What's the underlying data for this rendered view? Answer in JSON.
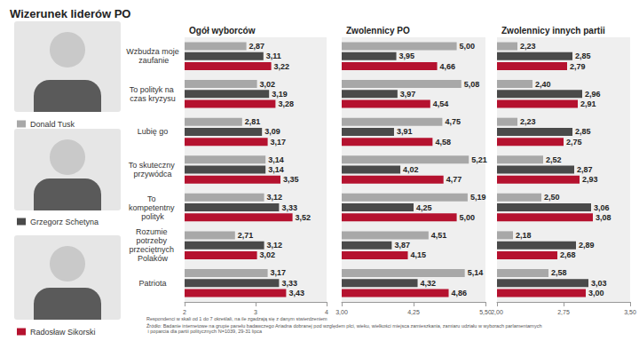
{
  "title": "Wizerunek liderów PO",
  "notes": [
    "Respondenci w skali od 1 do 7 określali, na ile zgadzają się z danym stwierdzeniem",
    "Źródło: Badanie internetowe na grupie panelu badawczego Ariadna dobranej pod względem płci, wieku, wielkości miejsca zamieszkania, zamiaru udziału w wyborach parlamentarnych i poparcia dla partii politycznych N=1039, 29-31 lipca"
  ],
  "chart_data": [
    {
      "type": "bar",
      "title": "Ogół wyborców",
      "orientation": "horizontal",
      "data_labels": true,
      "grid": false,
      "categories": [
        "Wzbudza moje zaufanie",
        "To polityk na czas kryzysu",
        "Lubię go",
        "To skuteczny przywódca",
        "To kompetentny polityk",
        "Rozumie potrzeby przeciętnych Polaków",
        "Patriota"
      ],
      "xlim": [
        2,
        4
      ],
      "xticks": [
        2,
        3,
        4
      ],
      "series": [
        {
          "name": "Donald Tusk",
          "color": "#a8a8a8",
          "values": [
            2.87,
            3.02,
            2.81,
            3.14,
            3.12,
            2.71,
            3.17
          ],
          "value_labels": [
            "2,87",
            "3,02",
            "2,81",
            "3,14",
            "3,12",
            "2,71",
            "3,17"
          ]
        },
        {
          "name": "Grzegorz Schetyna",
          "color": "#4a4a4a",
          "values": [
            3.11,
            3.19,
            3.09,
            3.14,
            3.33,
            3.12,
            3.33
          ],
          "value_labels": [
            "3,11",
            "3,19",
            "3,09",
            "3,14",
            "3,33",
            "3,12",
            "3,33"
          ]
        },
        {
          "name": "Radosław Sikorski",
          "color": "#b5122f",
          "values": [
            3.22,
            3.28,
            3.17,
            3.35,
            3.52,
            3.02,
            3.43
          ],
          "value_labels": [
            "3,22",
            "3,28",
            "3,17",
            "3,35",
            "3,52",
            "3,02",
            "3,43"
          ]
        }
      ]
    },
    {
      "type": "bar",
      "title": "Zwolennicy PO",
      "orientation": "horizontal",
      "data_labels": true,
      "grid": false,
      "categories": [
        "Wzbudza moje zaufanie",
        "To polityk na czas kryzysu",
        "Lubię go",
        "To skuteczny przywódca",
        "To kompetentny polityk",
        "Rozumie potrzeby przeciętnych Polaków",
        "Patriota"
      ],
      "tick_labels": "x",
      "xlim": [
        3.0,
        5.5
      ],
      "xticks": [
        {
          "value": 3.0,
          "label": "3,00"
        },
        {
          "value": 4.25,
          "label": "4,25"
        },
        {
          "value": 5.5,
          "label": "5,50"
        }
      ],
      "series": [
        {
          "name": "Donald Tusk",
          "color": "#a8a8a8",
          "values": [
            5.0,
            5.08,
            4.75,
            5.21,
            5.19,
            4.51,
            5.14
          ],
          "value_labels": [
            "5,00",
            "5,08",
            "4,75",
            "5,21",
            "5,19",
            "4,51",
            "5,14"
          ]
        },
        {
          "name": "Grzegorz Schetyna",
          "color": "#4a4a4a",
          "values": [
            3.95,
            3.97,
            3.91,
            4.02,
            4.25,
            3.87,
            4.32
          ],
          "value_labels": [
            "3,95",
            "3,97",
            "3,91",
            "4,02",
            "4,25",
            "3,87",
            "4,32"
          ]
        },
        {
          "name": "Radosław Sikorski",
          "color": "#b5122f",
          "values": [
            4.66,
            4.54,
            4.58,
            4.77,
            5.0,
            4.15,
            4.86
          ],
          "value_labels": [
            "4,66",
            "4,54",
            "4,58",
            "4,77",
            "5,00",
            "4,15",
            "4,86"
          ]
        }
      ]
    },
    {
      "type": "bar",
      "title": "Zwolennicy innych partii",
      "orientation": "horizontal",
      "data_labels": true,
      "grid": false,
      "categories": [
        "Wzbudza moje zaufanie",
        "To polityk na czas kryzysu",
        "Lubię go",
        "To skuteczny przywódca",
        "To kompetentny polityk",
        "Rozumie potrzeby przeciętnych Polaków",
        "Patriota"
      ],
      "tick_labels": "x",
      "xlim": [
        2.0,
        3.5
      ],
      "xticks": [
        {
          "value": 2.0,
          "label": "2,00"
        },
        {
          "value": 2.75,
          "label": "2,75"
        },
        {
          "value": 3.5,
          "label": "3,50"
        }
      ],
      "series": [
        {
          "name": "Donald Tusk",
          "color": "#a8a8a8",
          "values": [
            2.23,
            2.4,
            2.23,
            2.52,
            2.5,
            2.18,
            2.58
          ],
          "value_labels": [
            "2,23",
            "2,40",
            "2,23",
            "2,52",
            "2,50",
            "2,18",
            "2,58"
          ]
        },
        {
          "name": "Grzegorz Schetyna",
          "color": "#4a4a4a",
          "values": [
            2.85,
            2.96,
            2.85,
            2.87,
            3.06,
            2.89,
            3.03
          ],
          "value_labels": [
            "2,85",
            "2,96",
            "2,85",
            "2,87",
            "3,06",
            "2,89",
            "3,03"
          ]
        },
        {
          "name": "Radosław Sikorski",
          "color": "#b5122f",
          "values": [
            2.79,
            2.91,
            2.75,
            2.93,
            3.08,
            2.68,
            3.0
          ],
          "value_labels": [
            "2,79",
            "2,91",
            "2,75",
            "2,93",
            "3,08",
            "2,68",
            "3,00"
          ]
        }
      ]
    }
  ]
}
